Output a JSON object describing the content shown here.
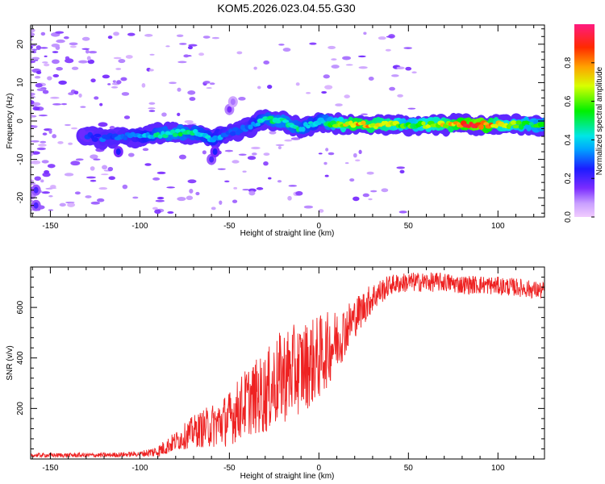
{
  "figure": {
    "title": "KOM5.2026.023.04.55.G30"
  },
  "chart_data": [
    {
      "type": "heatmap",
      "title": "KOM5.2026.023.04.55.G30",
      "xlabel": "Height of straight line (km)",
      "ylabel": "Frequency (Hz)",
      "xlim": [
        -161,
        126
      ],
      "ylim": [
        -25,
        25
      ],
      "xticks": [
        "-150",
        "-100",
        "-50",
        "0",
        "50",
        "100"
      ],
      "xtick_values": [
        -150,
        -100,
        -50,
        0,
        50,
        100
      ],
      "yticks": [
        "-20",
        "-10",
        "0",
        "10",
        "20"
      ],
      "ytick_values": [
        -20,
        -10,
        0,
        10,
        20
      ],
      "colorbar": {
        "label": "Normalized spectral amplitude",
        "range": [
          0,
          1
        ],
        "ticks": [
          "0.0",
          "0.2",
          "0.4",
          "0.6",
          "0.8"
        ],
        "tick_values": [
          0,
          0.2,
          0.4,
          0.6,
          0.8
        ]
      },
      "ridge": [
        {
          "x": -130,
          "f": -4.0,
          "a": 0.25
        },
        {
          "x": -120,
          "f": -4.5,
          "a": 0.3
        },
        {
          "x": -110,
          "f": -4.0,
          "a": 0.3
        },
        {
          "x": -100,
          "f": -4.0,
          "a": 0.35
        },
        {
          "x": -90,
          "f": -3.5,
          "a": 0.45
        },
        {
          "x": -80,
          "f": -3.0,
          "a": 0.5
        },
        {
          "x": -70,
          "f": -3.0,
          "a": 0.45
        },
        {
          "x": -60,
          "f": -4.5,
          "a": 0.4
        },
        {
          "x": -50,
          "f": -3.0,
          "a": 0.3
        },
        {
          "x": -40,
          "f": -2.0,
          "a": 0.3
        },
        {
          "x": -30,
          "f": 0.5,
          "a": 0.45
        },
        {
          "x": -20,
          "f": 0.0,
          "a": 0.5
        },
        {
          "x": -10,
          "f": -2.0,
          "a": 0.45
        },
        {
          "x": 0,
          "f": 0.0,
          "a": 0.4
        },
        {
          "x": 10,
          "f": -1.0,
          "a": 0.6
        },
        {
          "x": 20,
          "f": -1.0,
          "a": 0.8
        },
        {
          "x": 30,
          "f": -1.0,
          "a": 0.75
        },
        {
          "x": 40,
          "f": -1.0,
          "a": 0.7
        },
        {
          "x": 50,
          "f": -1.0,
          "a": 0.55
        },
        {
          "x": 60,
          "f": -1.0,
          "a": 0.65
        },
        {
          "x": 70,
          "f": -1.0,
          "a": 0.7
        },
        {
          "x": 80,
          "f": -1.0,
          "a": 0.85
        },
        {
          "x": 90,
          "f": -1.0,
          "a": 0.95
        },
        {
          "x": 100,
          "f": -1.0,
          "a": 0.7
        },
        {
          "x": 110,
          "f": -1.0,
          "a": 0.6
        },
        {
          "x": 120,
          "f": -1.0,
          "a": 0.55
        },
        {
          "x": 126,
          "f": -1.0,
          "a": 0.5
        }
      ],
      "extra_features": [
        {
          "x": -60,
          "f": -10.0,
          "a": 0.2
        },
        {
          "x": -58,
          "f": -8.0,
          "a": 0.25
        },
        {
          "x": -50,
          "f": 3.0,
          "a": 0.15
        },
        {
          "x": -48,
          "f": 5.0,
          "a": 0.1
        },
        {
          "x": -112,
          "f": -8.0,
          "a": 0.25
        },
        {
          "x": -158,
          "f": -18.0,
          "a": 0.2
        },
        {
          "x": -158,
          "f": -22.0,
          "a": 0.2
        }
      ]
    },
    {
      "type": "line",
      "xlabel": "Height of straight line (km)",
      "ylabel": "SNR (v/v)",
      "xlim": [
        -161,
        126
      ],
      "ylim": [
        0,
        760
      ],
      "xticks": [
        "-150",
        "-100",
        "-50",
        "0",
        "50",
        "100"
      ],
      "xtick_values": [
        -150,
        -100,
        -50,
        0,
        50,
        100
      ],
      "yticks": [
        "200",
        "400",
        "600"
      ],
      "ytick_values": [
        200,
        400,
        600
      ],
      "color": "#ee2222",
      "trend": [
        {
          "x": -161,
          "y": 15
        },
        {
          "x": -140,
          "y": 15
        },
        {
          "x": -120,
          "y": 15
        },
        {
          "x": -100,
          "y": 20
        },
        {
          "x": -90,
          "y": 30
        },
        {
          "x": -80,
          "y": 70
        },
        {
          "x": -70,
          "y": 110
        },
        {
          "x": -60,
          "y": 130
        },
        {
          "x": -50,
          "y": 160
        },
        {
          "x": -40,
          "y": 230
        },
        {
          "x": -30,
          "y": 260
        },
        {
          "x": -20,
          "y": 330
        },
        {
          "x": -10,
          "y": 360
        },
        {
          "x": 0,
          "y": 400
        },
        {
          "x": 10,
          "y": 470
        },
        {
          "x": 20,
          "y": 560
        },
        {
          "x": 30,
          "y": 640
        },
        {
          "x": 40,
          "y": 690
        },
        {
          "x": 50,
          "y": 700
        },
        {
          "x": 60,
          "y": 700
        },
        {
          "x": 70,
          "y": 700
        },
        {
          "x": 80,
          "y": 690
        },
        {
          "x": 90,
          "y": 690
        },
        {
          "x": 100,
          "y": 685
        },
        {
          "x": 110,
          "y": 680
        },
        {
          "x": 120,
          "y": 670
        },
        {
          "x": 126,
          "y": 665
        }
      ],
      "noise_amplitude": [
        {
          "x": -161,
          "y": 8
        },
        {
          "x": -100,
          "y": 10
        },
        {
          "x": -80,
          "y": 40
        },
        {
          "x": -50,
          "y": 110
        },
        {
          "x": -20,
          "y": 190
        },
        {
          "x": 0,
          "y": 170
        },
        {
          "x": 20,
          "y": 80
        },
        {
          "x": 40,
          "y": 40
        },
        {
          "x": 126,
          "y": 35
        }
      ]
    }
  ]
}
